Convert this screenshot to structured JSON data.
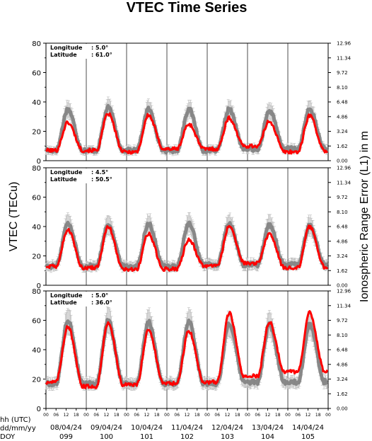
{
  "chart_data": {
    "type": "line",
    "title": "VTEC Time Series",
    "ylabel": "VTEC (TECu)",
    "y2label": "Ionospheric Range Error (L1) in m",
    "ylim": [
      0,
      80
    ],
    "y_ticks": [
      "0",
      "20",
      "40",
      "60",
      "80"
    ],
    "y2_ticks": [
      "0.00",
      "1.62",
      "3.24",
      "4.86",
      "6.48",
      "8.10",
      "9.72",
      "11.34",
      "12.96"
    ],
    "bottom_row_labels": [
      "hh (UTC)",
      "dd/mm/yy",
      "DOY"
    ],
    "hour_ticks": [
      "00",
      "06",
      "12",
      "18"
    ],
    "days": [
      {
        "date": "08/04/24",
        "doy": "099"
      },
      {
        "date": "09/04/24",
        "doy": "100"
      },
      {
        "date": "10/04/24",
        "doy": "101"
      },
      {
        "date": "11/04/24",
        "doy": "102"
      },
      {
        "date": "12/04/24",
        "doy": "103"
      },
      {
        "date": "13/04/24",
        "doy": "104"
      },
      {
        "date": "14/04/24",
        "doy": "105"
      }
    ],
    "panels": [
      {
        "longitude_label": "Longitude",
        "longitude_value": ":  5.0°",
        "latitude_label": "Latitude",
        "latitude_value": ": 61.0°",
        "current_night": [
          7,
          7,
          6,
          8,
          8,
          10,
          6
        ],
        "current_peak": [
          26,
          32,
          31,
          25,
          29,
          27,
          31
        ],
        "reference_night": [
          7,
          7,
          7,
          7,
          7,
          8,
          8
        ],
        "reference_peak": [
          35,
          36,
          35,
          35,
          35,
          34,
          35
        ]
      },
      {
        "longitude_label": "Longitude",
        "longitude_value": ":  4.5°",
        "latitude_label": "Latitude",
        "latitude_value": ": 50.5°",
        "current_night": [
          13,
          12,
          11,
          11,
          13,
          15,
          12
        ],
        "current_peak": [
          38,
          40,
          35,
          31,
          40,
          35,
          40
        ],
        "reference_night": [
          13,
          13,
          13,
          13,
          14,
          14,
          14
        ],
        "reference_peak": [
          42,
          42,
          42,
          42,
          42,
          41,
          41
        ]
      },
      {
        "longitude_label": "Longitude",
        "longitude_value": ":  5.0°",
        "latitude_label": "Latitude",
        "latitude_value": ": 36.0°",
        "current_night": [
          18,
          15,
          16,
          17,
          18,
          22,
          25
        ],
        "current_peak": [
          56,
          59,
          54,
          53,
          65,
          59,
          65
        ],
        "reference_night": [
          17,
          17,
          17,
          17,
          17,
          18,
          18
        ],
        "reference_peak": [
          60,
          60,
          59,
          59,
          58,
          57,
          57
        ]
      }
    ],
    "colors": {
      "current": "#ff0000",
      "reference": "#7a7a7a",
      "reference_band": "#bdbdbd"
    }
  }
}
